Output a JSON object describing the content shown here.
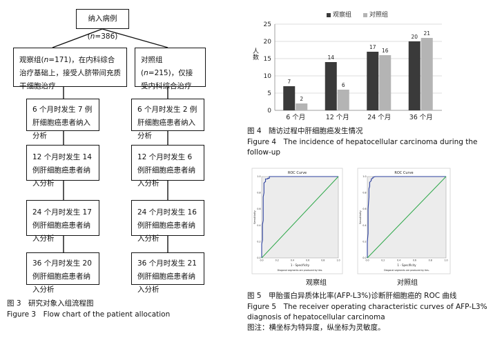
{
  "flowchart": {
    "top": {
      "pre": "纳入病例(",
      "n": "n",
      "post": "=386)"
    },
    "left_group": {
      "pre": "观察组(",
      "n": "n",
      "post": "=171)，在内科综合治疗基础上，接受人脐带间充质干细胞治疗"
    },
    "right_group": {
      "pre": "对照组(",
      "n": "n",
      "post": "=215)，仅接受内科综合治疗"
    },
    "left_steps": [
      "6 个月时发生 7 例肝细胞癌患者纳入分析",
      "12 个月时发生 14 例肝细胞癌患者纳入分析",
      "24 个月时发生 17 例肝细胞癌患者纳入分析",
      "36 个月时发生 20 例肝细胞癌患者纳入分析"
    ],
    "right_steps": [
      "6 个月时发生 2 例肝细胞癌患者纳入分析",
      "12 个月时发生 6 例肝细胞癌患者纳入分析",
      "24 个月时发生 16 例肝细胞癌患者纳入分析",
      "36 个月时发生 21 例肝细胞癌患者纳入分析"
    ]
  },
  "fig3": {
    "cn": "图 3　研究对象入组流程图",
    "en": "Figure 3　Flow chart of the patient allocation"
  },
  "fig4": {
    "cn": "图 4　随访过程中肝细胞癌发生情况",
    "en1": "Figure 4　The incidence of hepatocellular carcinoma during the",
    "en2": "follow-up"
  },
  "fig5": {
    "cn": "图 5　甲胎蛋白异质体比率(AFP-L3%)诊断肝细胞癌的 ROC 曲线",
    "en1": "Figure 5　The receiver operating characteristic curves of AFP-L3%",
    "en2": "diagnosis of hepatocellular carcinoma",
    "note": "图注：横坐标为特异度，纵坐标为灵敏度。"
  },
  "chart_data": [
    {
      "type": "bar",
      "categories": [
        "6 个月",
        "12 个月",
        "24 个月",
        "36 个月"
      ],
      "series": [
        {
          "name": "观察组",
          "values": [
            7,
            14,
            17,
            20
          ],
          "color": "#3a3a3a"
        },
        {
          "name": "对照组",
          "values": [
            2,
            6,
            16,
            21
          ],
          "color": "#b4b4b4"
        }
      ],
      "ylabel": "人数",
      "ylim": [
        0,
        25
      ],
      "yticks": [
        0,
        5,
        10,
        15,
        20,
        25
      ],
      "grid": true,
      "legend": "top"
    },
    {
      "type": "line",
      "panel": "观察组",
      "title": "ROC Curve",
      "xlabel": "1 - Specificity",
      "ylabel": "Sensitivity",
      "note": "Diagonal segments are produced by ties.",
      "xlim": [
        0,
        1
      ],
      "ylim": [
        0,
        1
      ],
      "xticks": [
        "0.0",
        "0.2",
        "0.4",
        "0.6",
        "0.8",
        "1.0"
      ],
      "yticks": [
        "0.0",
        "0.2",
        "0.4",
        "0.6",
        "0.8",
        "1.0"
      ],
      "series": [
        {
          "name": "roc",
          "color": "#2b3f9e",
          "x": [
            0,
            0,
            0.01,
            0.01,
            0.02,
            0.02,
            0.03,
            0.03,
            0.05,
            0.05,
            0.08,
            0.08,
            0.1,
            0.1,
            0.22,
            0.22,
            1
          ],
          "y": [
            0,
            0.17,
            0.22,
            0.41,
            0.46,
            0.75,
            0.8,
            0.92,
            0.94,
            0.97,
            0.97,
            0.98,
            0.98,
            1,
            1,
            1,
            1
          ]
        },
        {
          "name": "reference",
          "color": "#2ea84a",
          "x": [
            0,
            1
          ],
          "y": [
            0,
            1
          ]
        }
      ]
    },
    {
      "type": "line",
      "panel": "对照组",
      "title": "ROC Curve",
      "xlabel": "1 - Specificity",
      "ylabel": "Sensitivity",
      "note": "Diagonal segments are produced by ties.",
      "xlim": [
        0,
        1
      ],
      "ylim": [
        0,
        1
      ],
      "xticks": [
        "0.0",
        "0.2",
        "0.4",
        "0.6",
        "0.8",
        "1.0"
      ],
      "yticks": [
        "0.0",
        "0.2",
        "0.4",
        "0.6",
        "0.8",
        "1.0"
      ],
      "series": [
        {
          "name": "roc",
          "color": "#2b3f9e",
          "x": [
            0,
            0,
            0.01,
            0.01,
            0.02,
            0.02,
            0.03,
            0.03,
            0.05,
            0.05,
            0.07,
            0.07,
            0.1,
            0.1,
            1
          ],
          "y": [
            0,
            0.2,
            0.3,
            0.6,
            0.75,
            0.85,
            0.88,
            0.93,
            0.95,
            0.97,
            0.98,
            0.99,
            1,
            1,
            1
          ]
        },
        {
          "name": "reference",
          "color": "#2ea84a",
          "x": [
            0,
            1
          ],
          "y": [
            0,
            1
          ]
        }
      ]
    }
  ]
}
